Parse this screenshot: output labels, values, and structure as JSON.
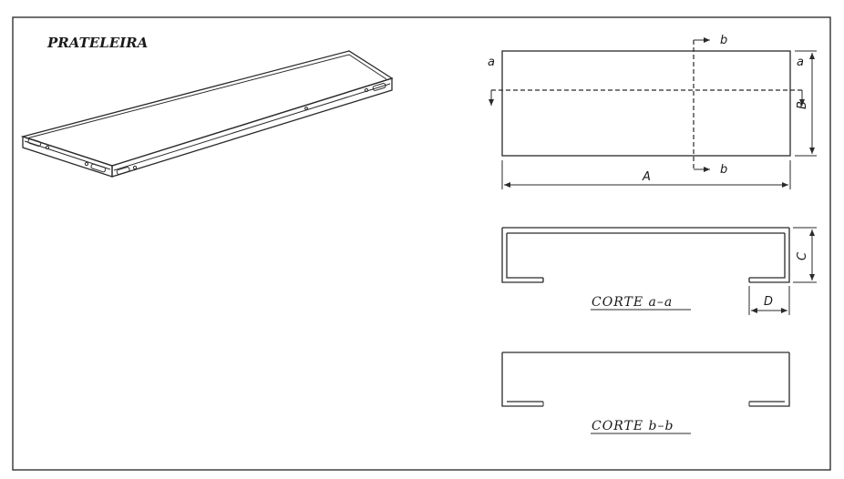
{
  "drawing": {
    "title": "PRATELEIRA",
    "plan_view": {
      "dim_length": "A",
      "dim_width": "B",
      "section_a_left": "a",
      "section_a_right": "a",
      "section_b_top": "b",
      "section_b_bottom": "b"
    },
    "section_aa": {
      "label": "CORTE  a–a",
      "dim_height": "C",
      "dim_flange": "D"
    },
    "section_bb": {
      "label": "CORTE  b–b"
    }
  }
}
